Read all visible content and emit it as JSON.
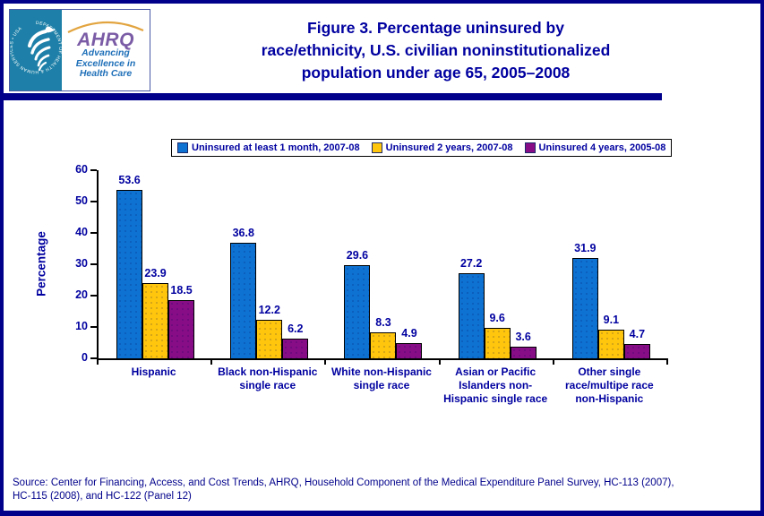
{
  "header": {
    "title_lines": [
      "Figure 3. Percentage uninsured by",
      "race/ethnicity, U.S. civilian noninstitutionalized",
      "population under age 65, 2005–2008"
    ]
  },
  "logo": {
    "hhs_ring_text": "DEPARTMENT OF HEALTH & HUMAN SERVICES • USA",
    "acronym": "AHRQ",
    "tagline_lines": [
      "Advancing",
      "Excellence in",
      "Health Care"
    ]
  },
  "chart_data": {
    "type": "bar",
    "title": "Figure 3. Percentage uninsured by race/ethnicity, U.S. civilian noninstitutionalized population under age 65, 2005–2008",
    "ylabel": "Percentage",
    "ylim": [
      0,
      60
    ],
    "ytick_interval": 10,
    "grid": false,
    "legend_position": "top",
    "categories": [
      "Hispanic",
      "Black non-Hispanic single race",
      "White non-Hispanic single race",
      "Asian or Pacific Islanders non-Hispanic single race",
      "Other single race/multipe race non-Hispanic"
    ],
    "category_label_lines": [
      [
        "Hispanic"
      ],
      [
        "Black non-Hispanic",
        "single race"
      ],
      [
        "White non-Hispanic",
        "single race"
      ],
      [
        "Asian or Pacific",
        "Islanders non-",
        "Hispanic single race"
      ],
      [
        "Other single",
        "race/multipe race",
        "non-Hispanic"
      ]
    ],
    "series": [
      {
        "name": "Uninsured at least 1 month, 2007-08",
        "color": "#0E72D2",
        "values": [
          53.6,
          36.8,
          29.6,
          27.2,
          31.9
        ]
      },
      {
        "name": "Uninsured 2 years, 2007-08",
        "color": "#FFC60D",
        "values": [
          23.9,
          12.2,
          8.3,
          9.6,
          9.1
        ]
      },
      {
        "name": "Uninsured 4 years, 2005-08",
        "color": "#870D87",
        "values": [
          18.5,
          6.2,
          4.9,
          3.6,
          4.7
        ]
      }
    ]
  },
  "footer": {
    "source_lines": [
      "Source: Center for Financing, Access, and Cost Trends, AHRQ, Household Component of the Medical Expenditure Panel Survey, HC-113 (2007),",
      "HC-115 (2008), and HC-122 (Panel 12)"
    ]
  },
  "colors": {
    "page_border": "#00008B",
    "divider": "#00008B",
    "title_text": "#0000A0",
    "axis_text": "#0000A0",
    "source_text": "#00008B",
    "bar_blue": "#0E72D2",
    "bar_yellow": "#FFC60D",
    "bar_purple": "#870D87",
    "hhs_teal": "#1E80A8",
    "ahrq_purple": "#7A5BA5",
    "ahrq_tagline_blue": "#1E6FB8",
    "arc_orange": "#E2A43F"
  }
}
